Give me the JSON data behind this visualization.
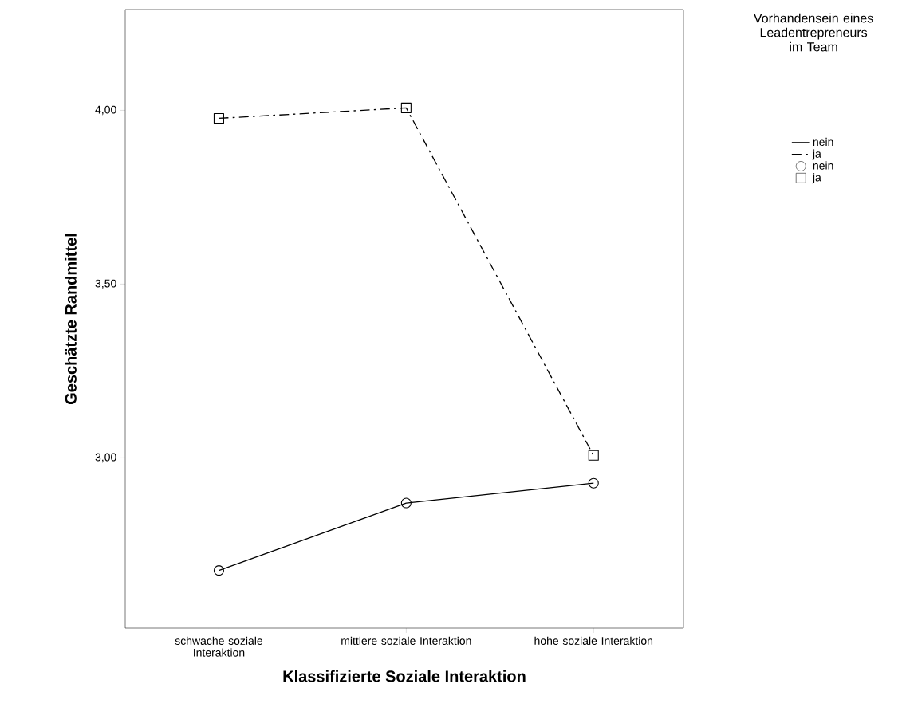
{
  "chart_data": {
    "type": "line",
    "xlabel": "Klassifizierte Soziale Interaktion",
    "ylabel": "Geschätzte Randmittel",
    "legend_title": "Vorhandensein eines Leadentrepreneurs im Team",
    "categories": [
      "schwache soziale Interaktion",
      "mittlere soziale Interaktion",
      "hohe soziale Interaktion"
    ],
    "series": [
      {
        "name": "nein",
        "color": "#000000",
        "marker": "circle",
        "line_style": "solid",
        "values": [
          2.676,
          2.87,
          2.927
        ]
      },
      {
        "name": "ja",
        "color": "#000000",
        "marker": "square",
        "line_style": "dashdot",
        "values": [
          3.977,
          4.007,
          3.007
        ]
      }
    ],
    "ylim": [
      2.51,
      4.29
    ],
    "yticks": [
      {
        "value": 3,
        "label": "3,00"
      },
      {
        "value": 3.5,
        "label": "3,50"
      },
      {
        "value": 4,
        "label": "4,00"
      }
    ],
    "grid": false,
    "legend": "top right"
  }
}
